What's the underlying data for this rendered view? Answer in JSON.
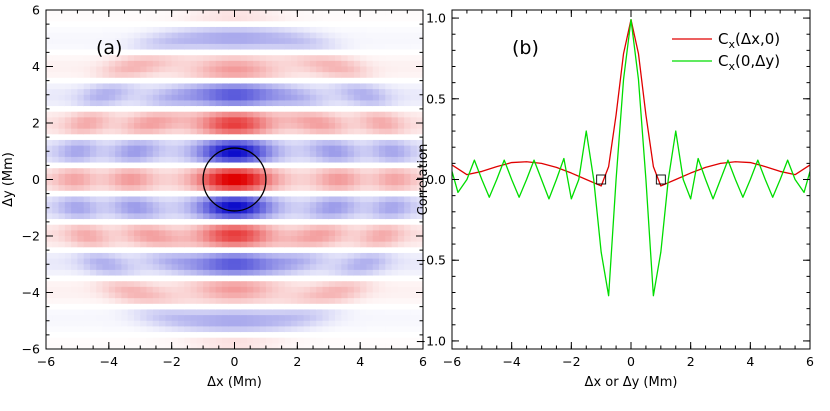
{
  "chart_data": [
    {
      "type": "heatmap",
      "panel_label": "(a)",
      "xlabel": "Δx (Mm)",
      "ylabel": "Δy (Mm)",
      "xlim": [
        -6,
        6
      ],
      "ylim": [
        -6,
        6
      ],
      "xticks": [
        -6,
        -4,
        -2,
        0,
        2,
        4,
        6
      ],
      "yticks": [
        -6,
        -4,
        -2,
        0,
        2,
        4,
        6
      ],
      "colormap": {
        "positive": "#e00000",
        "negative": "#0000c8",
        "zero": "#ffffff"
      },
      "overlay_circle": {
        "center": [
          0,
          0
        ],
        "radius": 1.0,
        "color": "#000000"
      },
      "field_description": {
        "center_peak": 1.0,
        "y_oscillation_wavelength_mm": 2.0,
        "x_decay_length_mm": 1.0,
        "outer_ring_radii_mm": [
          3.3,
          5.1
        ]
      }
    },
    {
      "type": "line",
      "panel_label": "(b)",
      "xlabel": "Δx or Δy (Mm)",
      "ylabel": "Correlation",
      "xlim": [
        -6,
        6
      ],
      "ylim": [
        -1.05,
        1.05
      ],
      "xticks": [
        -6,
        -4,
        -2,
        0,
        2,
        4,
        6
      ],
      "yticks": [
        -1.0,
        -0.5,
        0.0,
        0.5,
        1.0
      ],
      "yticklabels": [
        "−1.0",
        "−0.5",
        "0.0",
        "0.5",
        "1.0"
      ],
      "legend_position": "top-right",
      "series": [
        {
          "name": "C_x(Δx,0)",
          "color": "#e00000",
          "x": [
            -6.0,
            -5.5,
            -5.0,
            -4.5,
            -4.0,
            -3.5,
            -3.0,
            -2.5,
            -2.0,
            -1.5,
            -1.0,
            -0.75,
            -0.5,
            -0.25,
            0.0,
            0.25,
            0.5,
            0.75,
            1.0,
            1.5,
            2.0,
            2.5,
            3.0,
            3.5,
            4.0,
            4.5,
            5.0,
            5.5,
            6.0
          ],
          "y": [
            0.09,
            0.03,
            0.05,
            0.08,
            0.105,
            0.11,
            0.1,
            0.075,
            0.04,
            0.0,
            -0.04,
            0.08,
            0.4,
            0.78,
            0.99,
            0.78,
            0.4,
            0.08,
            -0.04,
            0.0,
            0.04,
            0.075,
            0.1,
            0.11,
            0.105,
            0.08,
            0.05,
            0.03,
            0.09
          ]
        },
        {
          "name": "C_x(0,Δy)",
          "color": "#00dd00",
          "x": [
            -6.0,
            -5.8,
            -5.5,
            -5.25,
            -5.0,
            -4.75,
            -4.5,
            -4.25,
            -4.0,
            -3.75,
            -3.5,
            -3.25,
            -3.0,
            -2.75,
            -2.5,
            -2.25,
            -2.0,
            -1.75,
            -1.5,
            -1.25,
            -1.0,
            -0.75,
            -0.5,
            -0.25,
            0.0,
            0.25,
            0.5,
            0.75,
            1.0,
            1.25,
            1.5,
            1.75,
            2.0,
            2.25,
            2.5,
            2.75,
            3.0,
            3.25,
            3.5,
            3.75,
            4.0,
            4.25,
            4.5,
            4.75,
            5.0,
            5.25,
            5.5,
            5.8,
            6.0
          ],
          "y": [
            0.05,
            -0.08,
            0.0,
            0.12,
            0.0,
            -0.11,
            0.0,
            0.12,
            0.0,
            -0.11,
            0.0,
            0.12,
            0.0,
            -0.12,
            0.0,
            0.13,
            -0.12,
            0.0,
            0.3,
            0.0,
            -0.45,
            -0.72,
            0.0,
            0.62,
            0.99,
            0.62,
            0.0,
            -0.72,
            -0.45,
            0.0,
            0.3,
            0.0,
            -0.12,
            0.13,
            0.0,
            -0.12,
            0.0,
            0.12,
            0.0,
            -0.11,
            0.0,
            0.12,
            0.0,
            -0.11,
            0.0,
            0.12,
            0.0,
            -0.08,
            0.05
          ]
        }
      ],
      "markers": {
        "shape": "square",
        "points": [
          [
            -1.0,
            0.0
          ],
          [
            1.0,
            0.0
          ]
        ]
      }
    }
  ]
}
